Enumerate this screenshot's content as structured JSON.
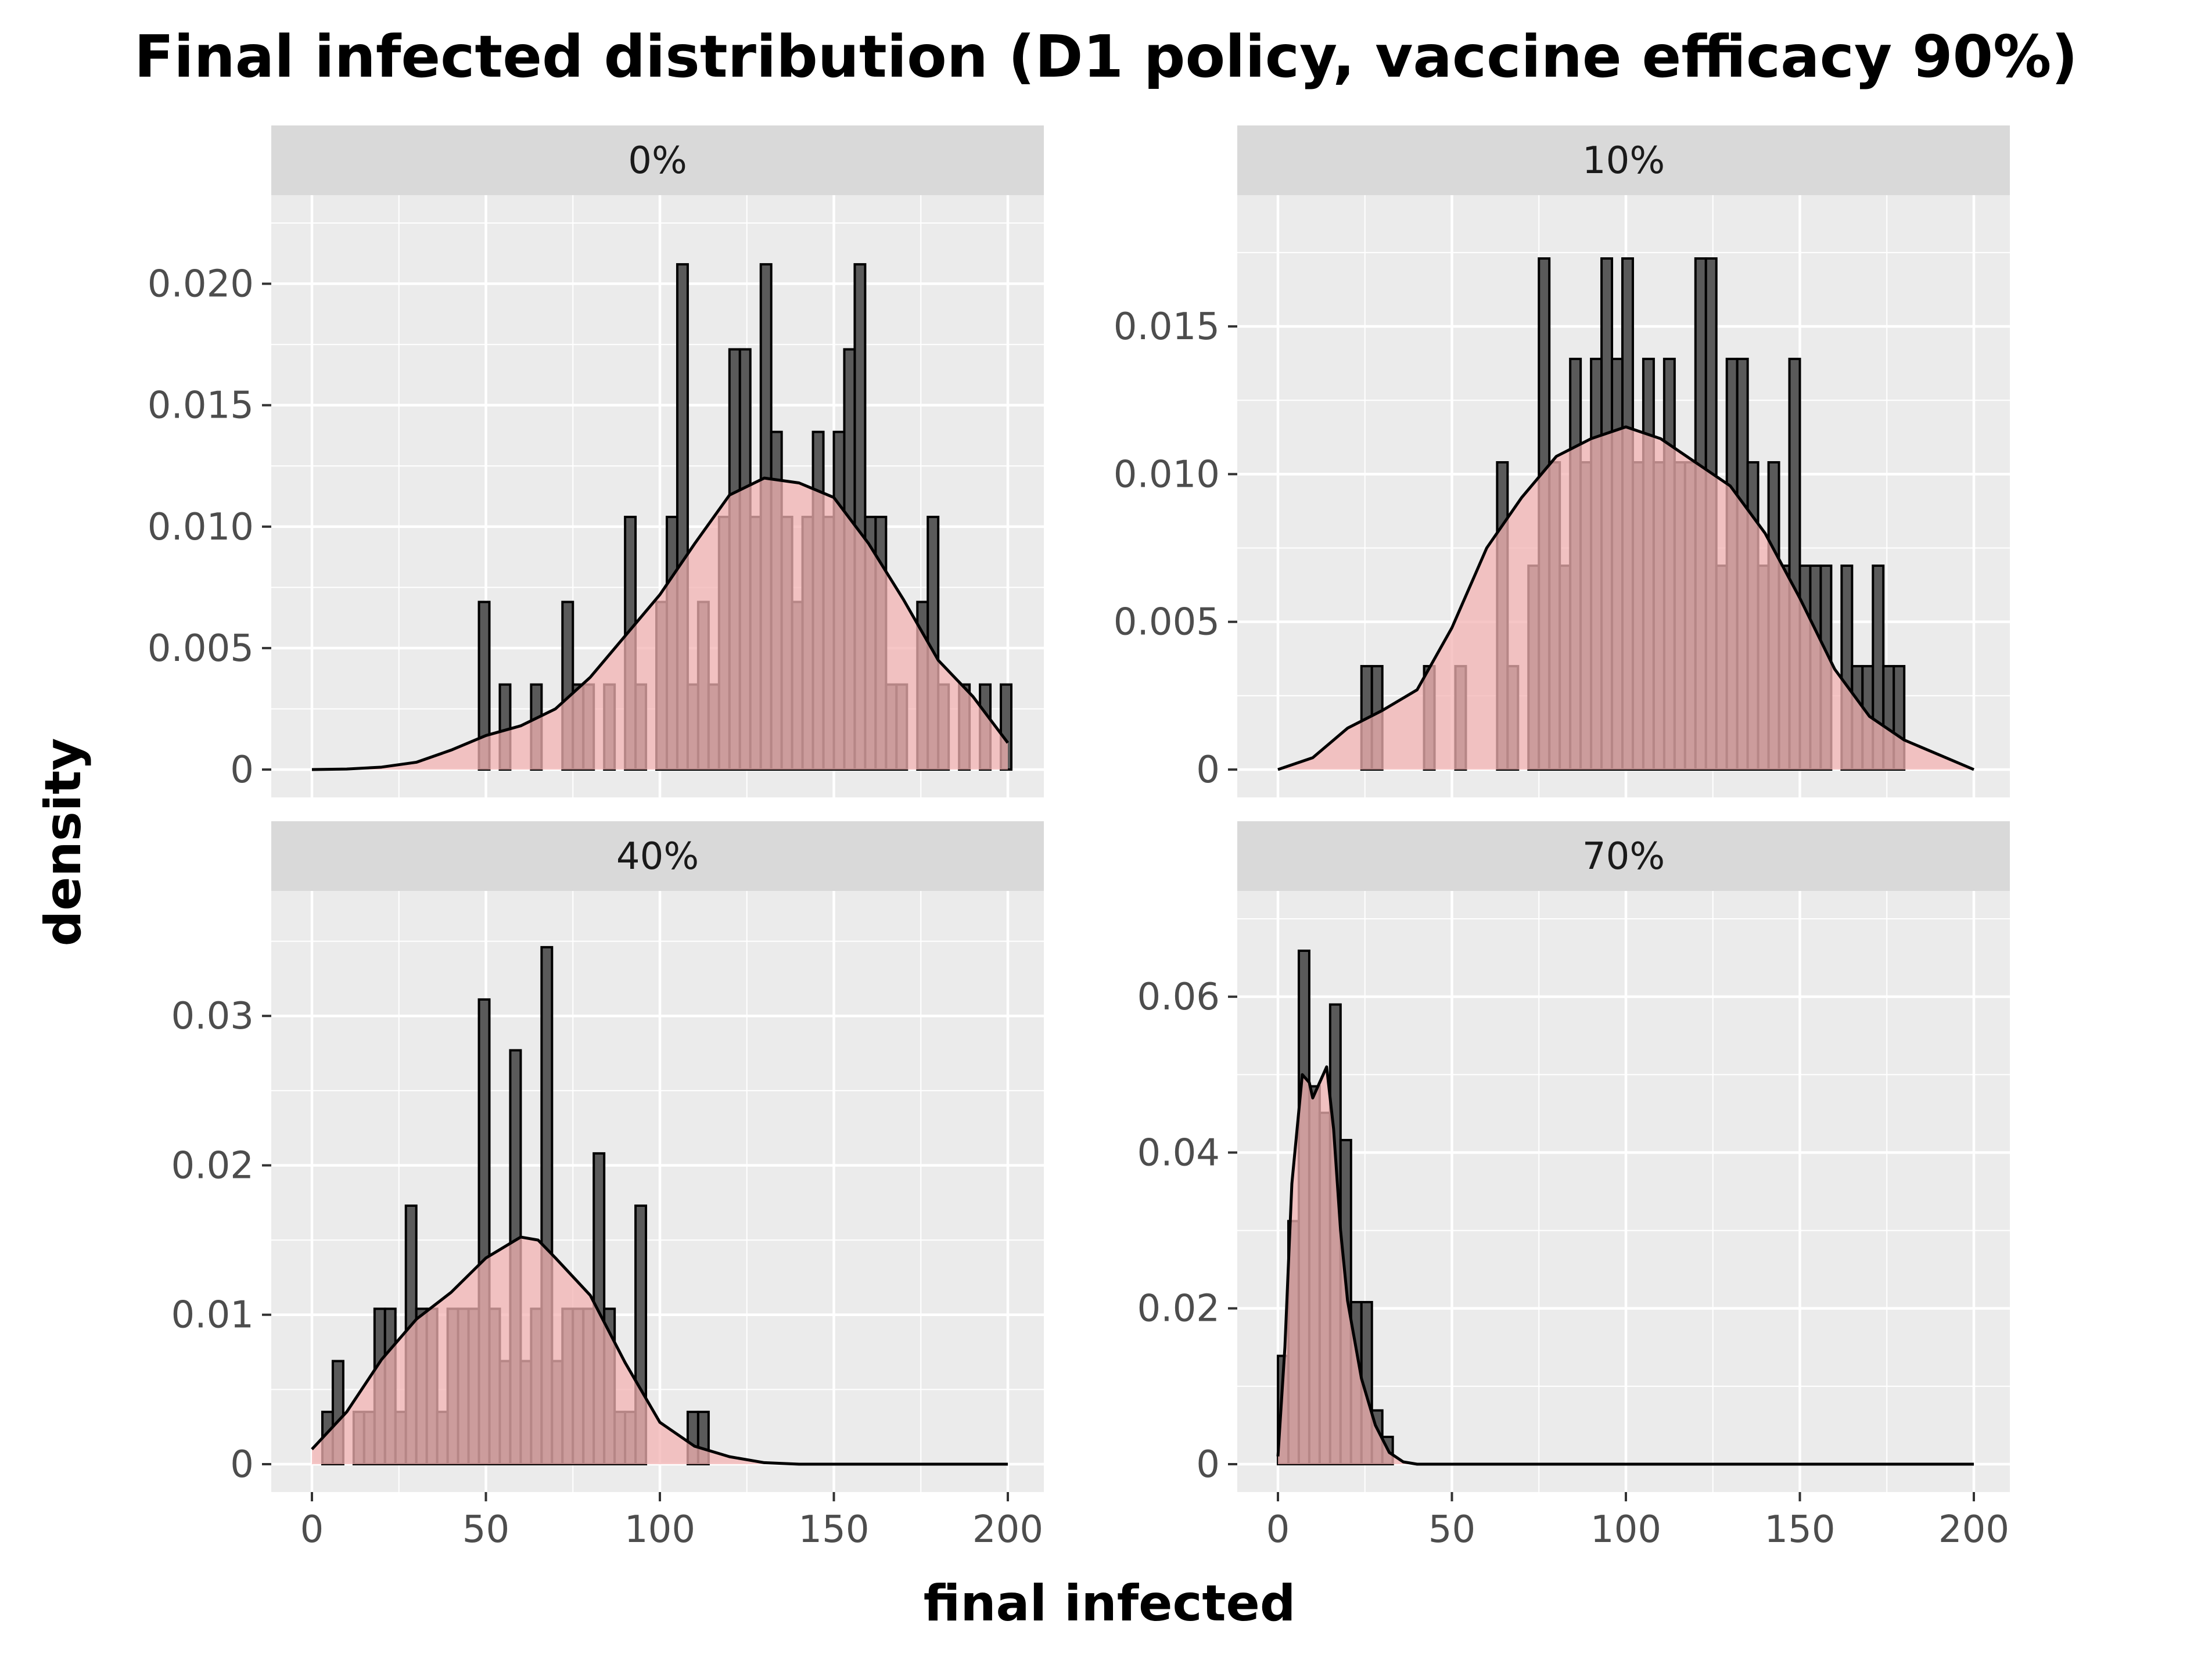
{
  "chart_data": {
    "type": "histogram",
    "title": "Final infected distribution (D1 policy, vaccine efficacy 90%)",
    "xlabel": "final infected",
    "ylabel": "density",
    "xlim": [
      0,
      200
    ],
    "x_ticks": [
      0,
      50,
      100,
      150,
      200
    ],
    "grid": true,
    "overlay": "density curve",
    "colors": {
      "panel_background": "#ebebeb",
      "strip_background": "#d9d9d9",
      "grid": "#ffffff",
      "histogram_fill": "#5a5a5a",
      "histogram_edge": "#000000",
      "density_fill": "#f3b3b3",
      "density_fill_opacity": 0.75,
      "density_line": "#000000"
    },
    "panels": [
      {
        "label": "0%",
        "y_ticks": [
          0,
          0.005,
          0.01,
          0.015,
          0.02
        ],
        "y_tick_labels": [
          "0",
          "0.005",
          "0.010",
          "0.015",
          "0.020"
        ],
        "ylim": [
          0,
          0.0225
        ],
        "bin_width": 3,
        "bins": [
          [
            48,
            0.0069
          ],
          [
            54,
            0.0035
          ],
          [
            63,
            0.0035
          ],
          [
            72,
            0.0069
          ],
          [
            75,
            0.0035
          ],
          [
            78,
            0.0035
          ],
          [
            84,
            0.0035
          ],
          [
            90,
            0.0104
          ],
          [
            93,
            0.0035
          ],
          [
            99,
            0.0069
          ],
          [
            102,
            0.0104
          ],
          [
            105,
            0.0208
          ],
          [
            108,
            0.0035
          ],
          [
            111,
            0.0069
          ],
          [
            114,
            0.0035
          ],
          [
            117,
            0.0104
          ],
          [
            120,
            0.0173
          ],
          [
            123,
            0.0173
          ],
          [
            126,
            0.0104
          ],
          [
            129,
            0.0208
          ],
          [
            132,
            0.0139
          ],
          [
            135,
            0.0104
          ],
          [
            138,
            0.0069
          ],
          [
            141,
            0.0104
          ],
          [
            144,
            0.0139
          ],
          [
            147,
            0.0104
          ],
          [
            150,
            0.0139
          ],
          [
            153,
            0.0173
          ],
          [
            156,
            0.0208
          ],
          [
            159,
            0.0104
          ],
          [
            162,
            0.0104
          ],
          [
            165,
            0.0035
          ],
          [
            168,
            0.0035
          ],
          [
            174,
            0.0069
          ],
          [
            177,
            0.0104
          ],
          [
            180,
            0.0035
          ],
          [
            186,
            0.0035
          ],
          [
            192,
            0.0035
          ],
          [
            198,
            0.0035
          ]
        ],
        "density": [
          [
            0,
            0
          ],
          [
            10,
            2e-05
          ],
          [
            20,
            0.0001
          ],
          [
            30,
            0.0003
          ],
          [
            40,
            0.0008
          ],
          [
            50,
            0.0014
          ],
          [
            60,
            0.0018
          ],
          [
            70,
            0.0025
          ],
          [
            80,
            0.0038
          ],
          [
            90,
            0.0055
          ],
          [
            100,
            0.0072
          ],
          [
            110,
            0.0093
          ],
          [
            120,
            0.0113
          ],
          [
            130,
            0.012
          ],
          [
            140,
            0.0118
          ],
          [
            150,
            0.0112
          ],
          [
            160,
            0.0093
          ],
          [
            170,
            0.007
          ],
          [
            180,
            0.0045
          ],
          [
            190,
            0.003
          ],
          [
            200,
            0.0011
          ]
        ]
      },
      {
        "label": "10%",
        "y_ticks": [
          0,
          0.005,
          0.01,
          0.015
        ],
        "y_tick_labels": [
          "0",
          "0.005",
          "0.010",
          "0.015"
        ],
        "ylim": [
          0,
          0.0185
        ],
        "bin_width": 3,
        "bins": [
          [
            24,
            0.0035
          ],
          [
            27,
            0.0035
          ],
          [
            42,
            0.0035
          ],
          [
            51,
            0.0035
          ],
          [
            63,
            0.0104
          ],
          [
            66,
            0.0035
          ],
          [
            72,
            0.0069
          ],
          [
            75,
            0.0173
          ],
          [
            78,
            0.0104
          ],
          [
            81,
            0.0069
          ],
          [
            84,
            0.0139
          ],
          [
            87,
            0.0104
          ],
          [
            90,
            0.0139
          ],
          [
            93,
            0.0173
          ],
          [
            96,
            0.0139
          ],
          [
            99,
            0.0173
          ],
          [
            102,
            0.0104
          ],
          [
            105,
            0.0139
          ],
          [
            108,
            0.0104
          ],
          [
            111,
            0.0139
          ],
          [
            114,
            0.0104
          ],
          [
            117,
            0.0104
          ],
          [
            120,
            0.0173
          ],
          [
            123,
            0.0173
          ],
          [
            126,
            0.0069
          ],
          [
            129,
            0.0139
          ],
          [
            132,
            0.0139
          ],
          [
            135,
            0.0104
          ],
          [
            138,
            0.0069
          ],
          [
            141,
            0.0104
          ],
          [
            144,
            0.0069
          ],
          [
            147,
            0.0139
          ],
          [
            150,
            0.0069
          ],
          [
            153,
            0.0069
          ],
          [
            156,
            0.0069
          ],
          [
            162,
            0.0069
          ],
          [
            165,
            0.0035
          ],
          [
            168,
            0.0035
          ],
          [
            171,
            0.0069
          ],
          [
            174,
            0.0035
          ],
          [
            177,
            0.0035
          ]
        ],
        "density": [
          [
            0,
            0
          ],
          [
            10,
            0.0004
          ],
          [
            20,
            0.0014
          ],
          [
            30,
            0.002
          ],
          [
            40,
            0.0027
          ],
          [
            50,
            0.0048
          ],
          [
            60,
            0.0075
          ],
          [
            70,
            0.0092
          ],
          [
            80,
            0.0106
          ],
          [
            90,
            0.0112
          ],
          [
            100,
            0.0116
          ],
          [
            110,
            0.0112
          ],
          [
            120,
            0.0104
          ],
          [
            130,
            0.0096
          ],
          [
            140,
            0.008
          ],
          [
            150,
            0.0058
          ],
          [
            160,
            0.0034
          ],
          [
            170,
            0.0018
          ],
          [
            180,
            0.001
          ],
          [
            190,
            0.0005
          ],
          [
            200,
            0
          ]
        ]
      },
      {
        "label": "40%",
        "y_ticks": [
          0,
          0.01,
          0.02,
          0.03
        ],
        "y_tick_labels": [
          "0",
          "0.01",
          "0.02",
          "0.03"
        ],
        "ylim": [
          0,
          0.0365
        ],
        "bin_width": 3,
        "bins": [
          [
            3,
            0.0035
          ],
          [
            6,
            0.0069
          ],
          [
            12,
            0.0035
          ],
          [
            15,
            0.0035
          ],
          [
            18,
            0.0104
          ],
          [
            21,
            0.0104
          ],
          [
            24,
            0.0035
          ],
          [
            27,
            0.0173
          ],
          [
            30,
            0.0104
          ],
          [
            33,
            0.0104
          ],
          [
            36,
            0.0035
          ],
          [
            39,
            0.0104
          ],
          [
            42,
            0.0104
          ],
          [
            45,
            0.0104
          ],
          [
            48,
            0.0311
          ],
          [
            51,
            0.0104
          ],
          [
            54,
            0.0069
          ],
          [
            57,
            0.0277
          ],
          [
            60,
            0.0069
          ],
          [
            63,
            0.0104
          ],
          [
            66,
            0.0346
          ],
          [
            69,
            0.0069
          ],
          [
            72,
            0.0104
          ],
          [
            75,
            0.0104
          ],
          [
            78,
            0.0104
          ],
          [
            81,
            0.0208
          ],
          [
            84,
            0.0104
          ],
          [
            87,
            0.0035
          ],
          [
            90,
            0.0035
          ],
          [
            93,
            0.0173
          ],
          [
            108,
            0.0035
          ],
          [
            111,
            0.0035
          ]
        ],
        "density": [
          [
            0,
            0.001
          ],
          [
            10,
            0.0035
          ],
          [
            20,
            0.007
          ],
          [
            30,
            0.0097
          ],
          [
            40,
            0.0115
          ],
          [
            50,
            0.0138
          ],
          [
            60,
            0.0152
          ],
          [
            65,
            0.015
          ],
          [
            70,
            0.0138
          ],
          [
            80,
            0.0113
          ],
          [
            90,
            0.0068
          ],
          [
            100,
            0.0028
          ],
          [
            110,
            0.0012
          ],
          [
            120,
            0.0005
          ],
          [
            130,
            0.0001
          ],
          [
            140,
            0
          ],
          [
            200,
            0
          ]
        ]
      },
      {
        "label": "70%",
        "y_ticks": [
          0,
          0.02,
          0.04,
          0.06
        ],
        "y_tick_labels": [
          "0",
          "0.02",
          "0.04",
          "0.06"
        ],
        "ylim": [
          0,
          0.07
        ],
        "bin_width": 3,
        "bins": [
          [
            0,
            0.0139
          ],
          [
            3,
            0.0312
          ],
          [
            6,
            0.0659
          ],
          [
            9,
            0.0485
          ],
          [
            12,
            0.0451
          ],
          [
            15,
            0.059
          ],
          [
            18,
            0.0416
          ],
          [
            21,
            0.0208
          ],
          [
            24,
            0.0208
          ],
          [
            27,
            0.0069
          ],
          [
            30,
            0.0035
          ]
        ],
        "density": [
          [
            0,
            0.001
          ],
          [
            2,
            0.015
          ],
          [
            4,
            0.036
          ],
          [
            7,
            0.05
          ],
          [
            9,
            0.049
          ],
          [
            10,
            0.047
          ],
          [
            12,
            0.049
          ],
          [
            14,
            0.051
          ],
          [
            16,
            0.043
          ],
          [
            18,
            0.03
          ],
          [
            20,
            0.021
          ],
          [
            24,
            0.011
          ],
          [
            28,
            0.005
          ],
          [
            32,
            0.0015
          ],
          [
            36,
            0.0003
          ],
          [
            40,
            0
          ],
          [
            200,
            0
          ]
        ]
      }
    ]
  }
}
